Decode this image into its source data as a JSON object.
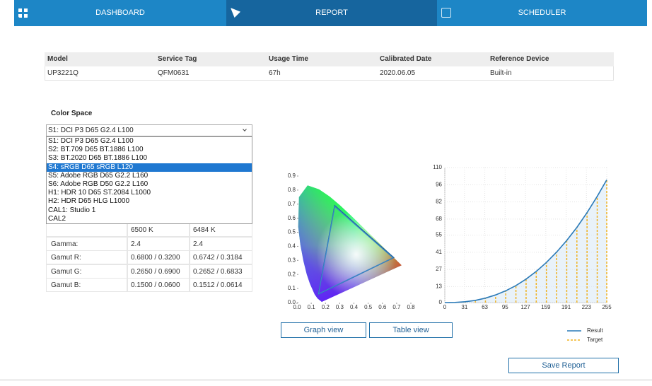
{
  "nav": {
    "tabs": [
      "DASHBOARD",
      "REPORT",
      "SCHEDULER"
    ],
    "active": 1
  },
  "info_table": {
    "headers": [
      "Model",
      "Service Tag",
      "Usage Time",
      "Calibrated Date",
      "Reference Device"
    ],
    "rows": [
      [
        "UP3221Q",
        "QFM0631",
        "67h",
        "2020.06.05",
        "Built-in"
      ]
    ]
  },
  "color_space": {
    "label": "Color Space",
    "selected": "S1: DCI P3 D65 G2.4 L100",
    "options": [
      "S1: DCI P3 D65 G2.4 L100",
      "S2: BT.709 D65 BT.1886 L100",
      "S3: BT.2020 D65 BT.1886 L100",
      "S4: sRGB D65 sRGB L120",
      "S5: Adobe RGB D65 G2.2 L160",
      "S6: Adobe RGB D50 G2.2 L160",
      "H1: HDR 10 D65 ST.2084 L1000",
      "H2: HDR D65 HLG L1000",
      "CAL1: Studio 1",
      "CAL2"
    ],
    "highlighted": 3
  },
  "gamut_table": {
    "rows": [
      [
        null,
        "6500 K",
        "6484 K"
      ],
      [
        "Gamma:",
        "2.4",
        "2.4"
      ],
      [
        "Gamut R:",
        "0.6800 / 0.3200",
        "0.6742 / 0.3184"
      ],
      [
        "Gamut G:",
        "0.2650 / 0.6900",
        "0.2652 / 0.6833"
      ],
      [
        "Gamut B:",
        "0.1500 / 0.0600",
        "0.1512 / 0.0614"
      ]
    ]
  },
  "chart_data": [
    {
      "type": "chromaticity",
      "xlim": [
        0,
        0.8
      ],
      "ylim": [
        0,
        0.9
      ],
      "xticks": [
        {
          "value": 0,
          "label": "0.0"
        },
        0.1,
        0.2,
        0.3,
        0.4,
        0.5,
        0.6,
        0.7,
        0.8
      ],
      "yticks": [
        {
          "value": 0,
          "label": "0.0"
        },
        0.1,
        0.2,
        0.3,
        0.4,
        0.5,
        0.6,
        0.7,
        0.8,
        0.9
      ],
      "series": [
        {
          "color": "#1d5f99",
          "x": [
            0.68,
            0.265,
            0.15
          ],
          "y": [
            0.32,
            0.69,
            0.06
          ]
        },
        {
          "color": "#3a86c8",
          "x": [
            0.6742,
            0.2652,
            0.1512
          ],
          "y": [
            0.3184,
            0.6833,
            0.0614
          ]
        }
      ]
    },
    {
      "type": "tone",
      "xlim": [
        0,
        255
      ],
      "ylim": [
        0,
        110
      ],
      "xticks": [
        0,
        31,
        63,
        95,
        127,
        159,
        191,
        223,
        255
      ],
      "yticks": [
        0,
        13,
        27,
        41,
        55,
        68,
        82,
        96,
        110
      ],
      "x": [
        0,
        16,
        32,
        48,
        64,
        80,
        96,
        112,
        128,
        144,
        160,
        176,
        192,
        208,
        224,
        240,
        255
      ],
      "series": [
        {
          "name": "Result",
          "color": "#2a7ab8",
          "values": [
            0,
            0.1,
            0.7,
            1.8,
            3.6,
            6.2,
            9.6,
            13.9,
            19.1,
            25.4,
            32.7,
            41.1,
            50.6,
            61.3,
            73.3,
            86.5,
            100
          ]
        },
        {
          "name": "Target",
          "color": "#f0b323",
          "values": [
            0,
            0.1,
            0.7,
            1.8,
            3.6,
            6.2,
            9.6,
            13.9,
            19.1,
            25.4,
            32.7,
            41.1,
            50.6,
            61.3,
            73.3,
            86.5,
            100
          ]
        }
      ],
      "legend": "lower right"
    }
  ],
  "buttons": [
    "Graph view",
    "Table view",
    "Save Report"
  ]
}
